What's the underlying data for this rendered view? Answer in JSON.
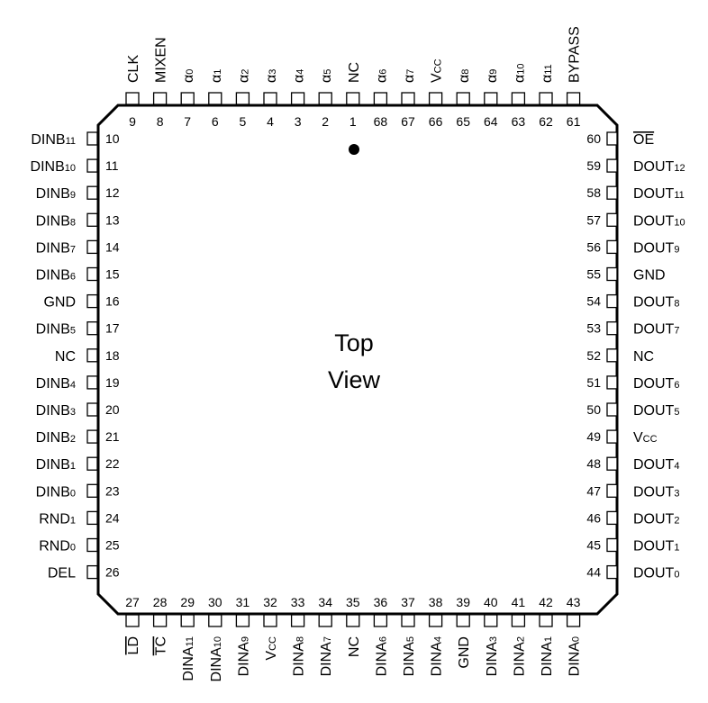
{
  "center_text": {
    "line1": "Top",
    "line2": "View"
  },
  "pins": {
    "top": [
      {
        "num": "9",
        "name": "CLK",
        "sub": ""
      },
      {
        "num": "8",
        "name": "MIXEN",
        "sub": ""
      },
      {
        "num": "7",
        "name": "α",
        "sub": "0"
      },
      {
        "num": "6",
        "name": "α",
        "sub": "1"
      },
      {
        "num": "5",
        "name": "α",
        "sub": "2"
      },
      {
        "num": "4",
        "name": "α",
        "sub": "3"
      },
      {
        "num": "3",
        "name": "α",
        "sub": "4"
      },
      {
        "num": "2",
        "name": "α",
        "sub": "5"
      },
      {
        "num": "1",
        "name": "NC",
        "sub": ""
      },
      {
        "num": "68",
        "name": "α",
        "sub": "6"
      },
      {
        "num": "67",
        "name": "α",
        "sub": "7"
      },
      {
        "num": "66",
        "name": "V",
        "sub": "CC"
      },
      {
        "num": "65",
        "name": "α",
        "sub": "8"
      },
      {
        "num": "64",
        "name": "α",
        "sub": "9"
      },
      {
        "num": "63",
        "name": "α",
        "sub": "10"
      },
      {
        "num": "62",
        "name": "α",
        "sub": "11"
      },
      {
        "num": "61",
        "name": "BYPASS",
        "sub": ""
      }
    ],
    "left": [
      {
        "num": "10",
        "name": "DINB",
        "sub": "11"
      },
      {
        "num": "11",
        "name": "DINB",
        "sub": "10"
      },
      {
        "num": "12",
        "name": "DINB",
        "sub": "9"
      },
      {
        "num": "13",
        "name": "DINB",
        "sub": "8"
      },
      {
        "num": "14",
        "name": "DINB",
        "sub": "7"
      },
      {
        "num": "15",
        "name": "DINB",
        "sub": "6"
      },
      {
        "num": "16",
        "name": "GND",
        "sub": ""
      },
      {
        "num": "17",
        "name": "DINB",
        "sub": "5"
      },
      {
        "num": "18",
        "name": "NC",
        "sub": ""
      },
      {
        "num": "19",
        "name": "DINB",
        "sub": "4"
      },
      {
        "num": "20",
        "name": "DINB",
        "sub": "3"
      },
      {
        "num": "21",
        "name": "DINB",
        "sub": "2"
      },
      {
        "num": "22",
        "name": "DINB",
        "sub": "1"
      },
      {
        "num": "23",
        "name": "DINB",
        "sub": "0"
      },
      {
        "num": "24",
        "name": "RND",
        "sub": "1"
      },
      {
        "num": "25",
        "name": "RND",
        "sub": "0"
      },
      {
        "num": "26",
        "name": "DEL",
        "sub": ""
      }
    ],
    "right": [
      {
        "num": "60",
        "name": "OE",
        "sub": "",
        "overline": true
      },
      {
        "num": "59",
        "name": "DOUT",
        "sub": "12"
      },
      {
        "num": "58",
        "name": "DOUT",
        "sub": "11"
      },
      {
        "num": "57",
        "name": "DOUT",
        "sub": "10"
      },
      {
        "num": "56",
        "name": "DOUT",
        "sub": "9"
      },
      {
        "num": "55",
        "name": "GND",
        "sub": ""
      },
      {
        "num": "54",
        "name": "DOUT",
        "sub": "8"
      },
      {
        "num": "53",
        "name": "DOUT",
        "sub": "7"
      },
      {
        "num": "52",
        "name": "NC",
        "sub": ""
      },
      {
        "num": "51",
        "name": "DOUT",
        "sub": "6"
      },
      {
        "num": "50",
        "name": "DOUT",
        "sub": "5"
      },
      {
        "num": "49",
        "name": "V",
        "sub": "CC"
      },
      {
        "num": "48",
        "name": "DOUT",
        "sub": "4"
      },
      {
        "num": "47",
        "name": "DOUT",
        "sub": "3"
      },
      {
        "num": "46",
        "name": "DOUT",
        "sub": "2"
      },
      {
        "num": "45",
        "name": "DOUT",
        "sub": "1"
      },
      {
        "num": "44",
        "name": "DOUT",
        "sub": "0"
      }
    ],
    "bottom": [
      {
        "num": "27",
        "name": "LD",
        "sub": "",
        "overline": true
      },
      {
        "num": "28",
        "name": "TC",
        "sub": "",
        "overline": true
      },
      {
        "num": "29",
        "name": "DINA",
        "sub": "11"
      },
      {
        "num": "30",
        "name": "DINA",
        "sub": "10"
      },
      {
        "num": "31",
        "name": "DINA",
        "sub": "9"
      },
      {
        "num": "32",
        "name": "V",
        "sub": "CC"
      },
      {
        "num": "33",
        "name": "DINA",
        "sub": "8"
      },
      {
        "num": "34",
        "name": "DINA",
        "sub": "7"
      },
      {
        "num": "35",
        "name": "NC",
        "sub": ""
      },
      {
        "num": "36",
        "name": "DINA",
        "sub": "6"
      },
      {
        "num": "37",
        "name": "DINA",
        "sub": "5"
      },
      {
        "num": "38",
        "name": "DINA",
        "sub": "4"
      },
      {
        "num": "39",
        "name": "GND",
        "sub": ""
      },
      {
        "num": "40",
        "name": "DINA",
        "sub": "3"
      },
      {
        "num": "41",
        "name": "DINA",
        "sub": "2"
      },
      {
        "num": "42",
        "name": "DINA",
        "sub": "1"
      },
      {
        "num": "43",
        "name": "DINA",
        "sub": "0"
      }
    ]
  }
}
